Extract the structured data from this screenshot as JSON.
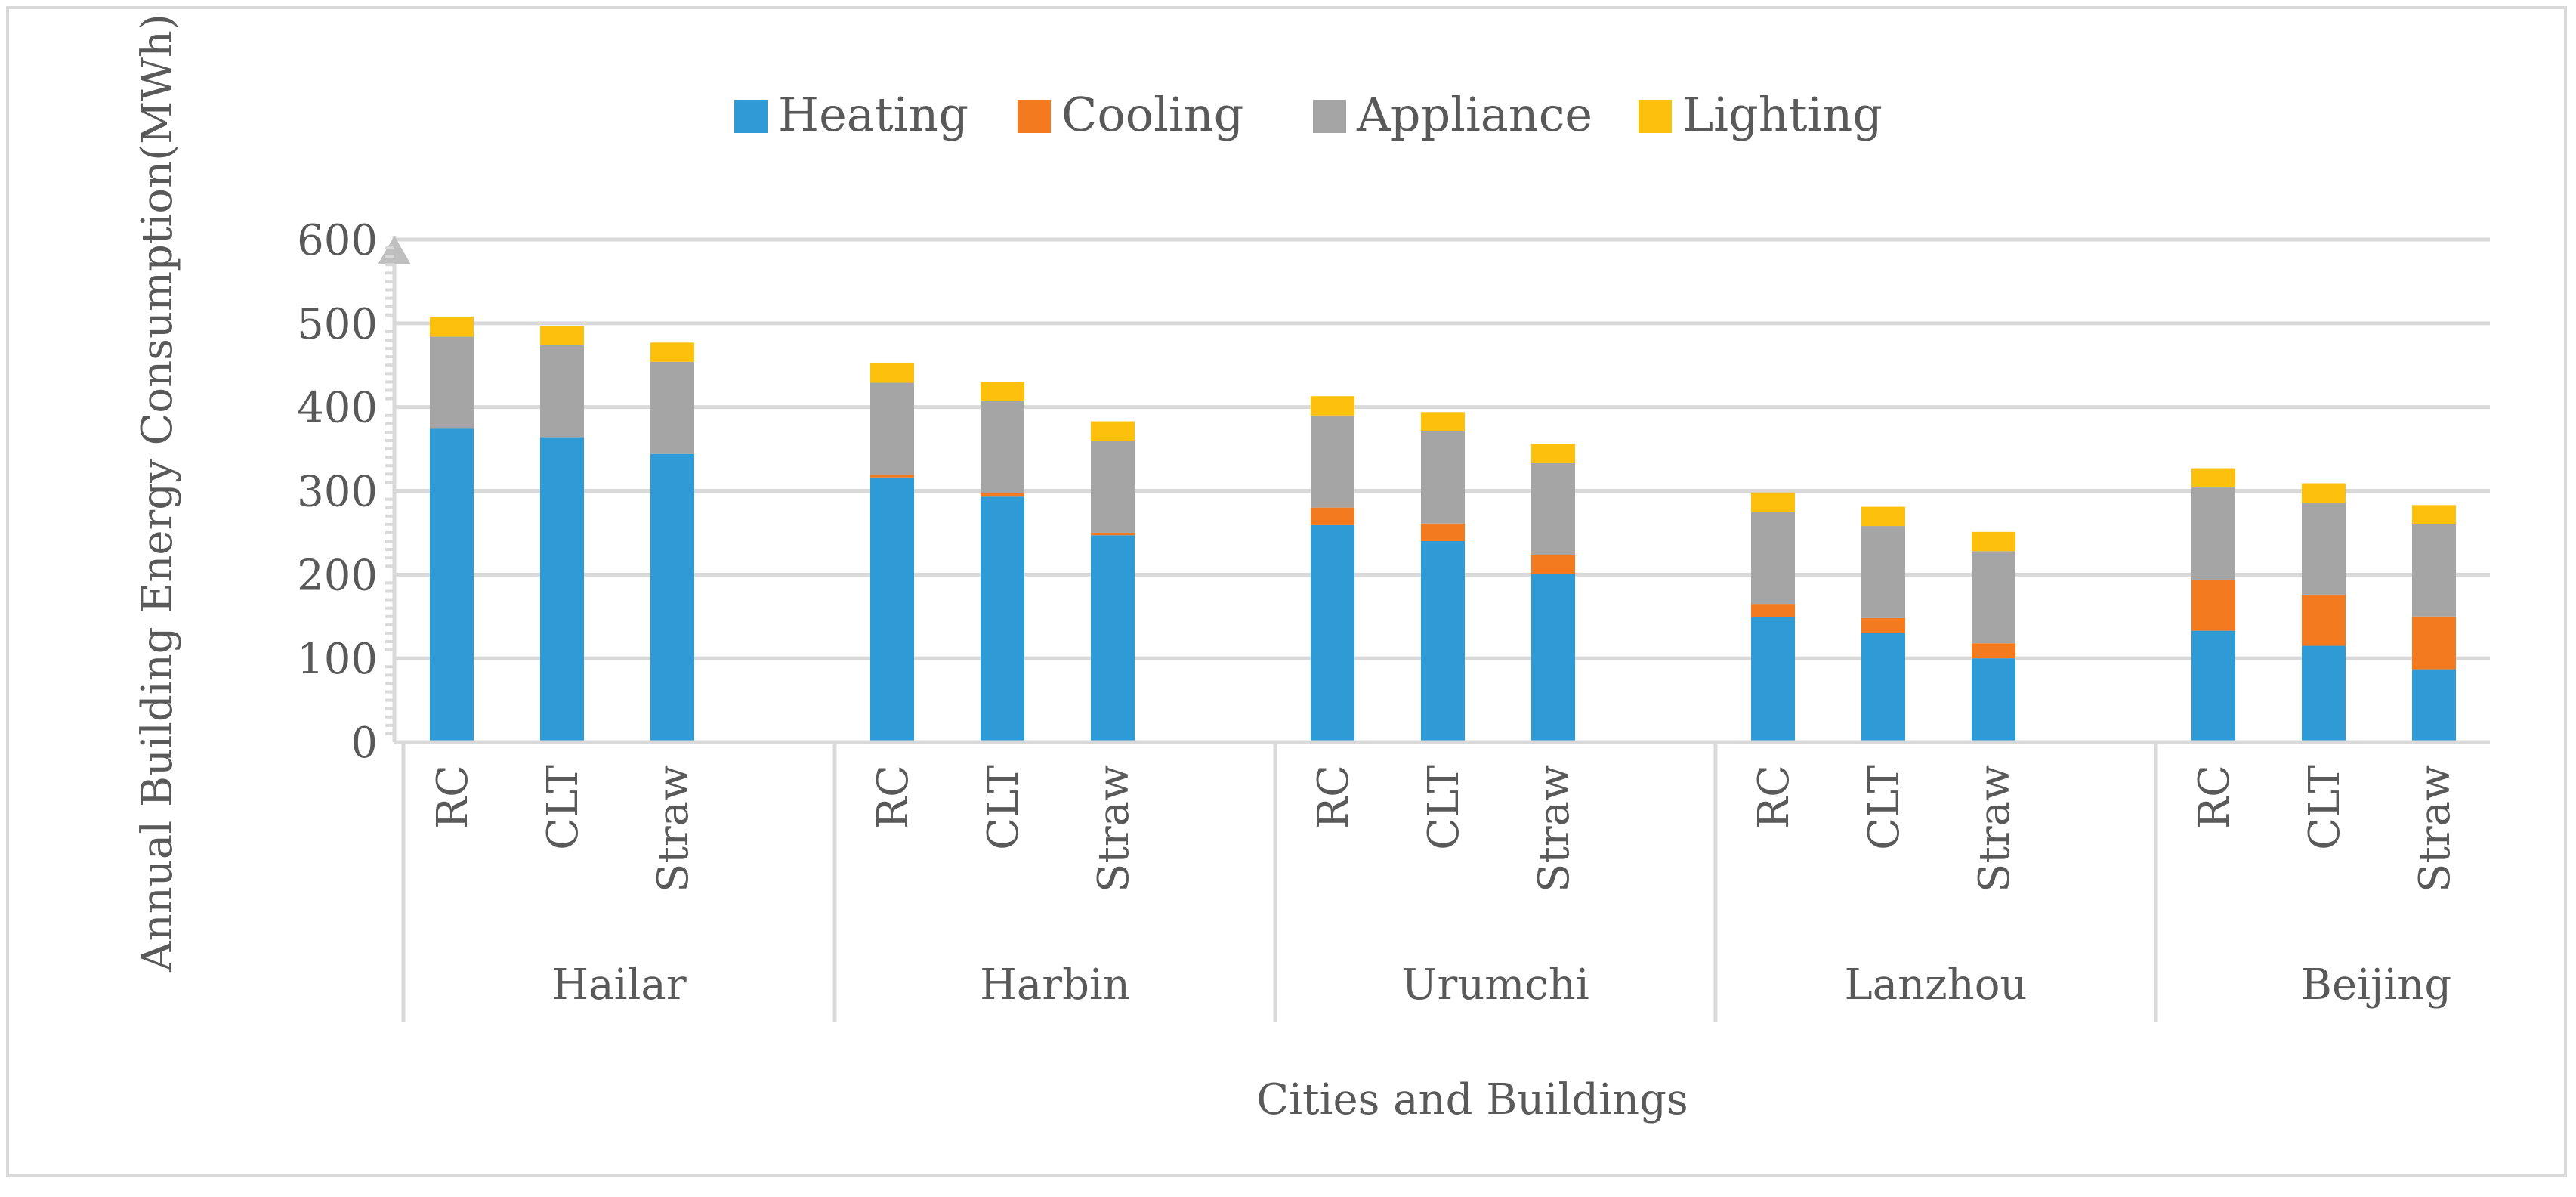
{
  "chart_data": {
    "type": "bar",
    "stacked": true,
    "title": "",
    "xlabel": "Cities and Buildings",
    "ylabel": "Annual Building Energy Consumption(MWh)",
    "ylim": [
      0,
      600
    ],
    "y_ticks": [
      "0",
      "100",
      "200",
      "300",
      "400",
      "500",
      "600"
    ],
    "legend_position": "top-center",
    "colors": {
      "Heating": "#2e9bd6",
      "Cooling": "#f47a20",
      "Appliance": "#a5a5a5",
      "Lighting": "#fdc00d"
    },
    "groups": [
      {
        "name": "Hailar",
        "categories": [
          "RC",
          "CLT",
          "Straw"
        ]
      },
      {
        "name": "Harbin",
        "categories": [
          "RC",
          "CLT",
          "Straw"
        ]
      },
      {
        "name": "Urumchi",
        "categories": [
          "RC",
          "CLT",
          "Straw"
        ]
      },
      {
        "name": "Lanzhou",
        "categories": [
          "RC",
          "CLT",
          "Straw"
        ]
      },
      {
        "name": "Beijing",
        "categories": [
          "RC",
          "CLT",
          "Straw"
        ]
      }
    ],
    "series": [
      {
        "name": "Heating",
        "values": [
          374,
          364,
          344,
          316,
          293,
          247,
          259,
          240,
          201,
          149,
          130,
          100,
          133,
          115,
          87
        ]
      },
      {
        "name": "Cooling",
        "values": [
          0,
          0,
          0,
          3,
          4,
          3,
          21,
          21,
          22,
          16,
          18,
          18,
          61,
          61,
          63
        ]
      },
      {
        "name": "Appliance",
        "values": [
          110,
          110,
          110,
          110,
          110,
          110,
          110,
          110,
          110,
          110,
          110,
          110,
          110,
          110,
          110
        ]
      },
      {
        "name": "Lighting",
        "values": [
          24,
          23,
          23,
          24,
          23,
          23,
          23,
          23,
          23,
          23,
          23,
          23,
          23,
          23,
          23
        ]
      }
    ]
  }
}
